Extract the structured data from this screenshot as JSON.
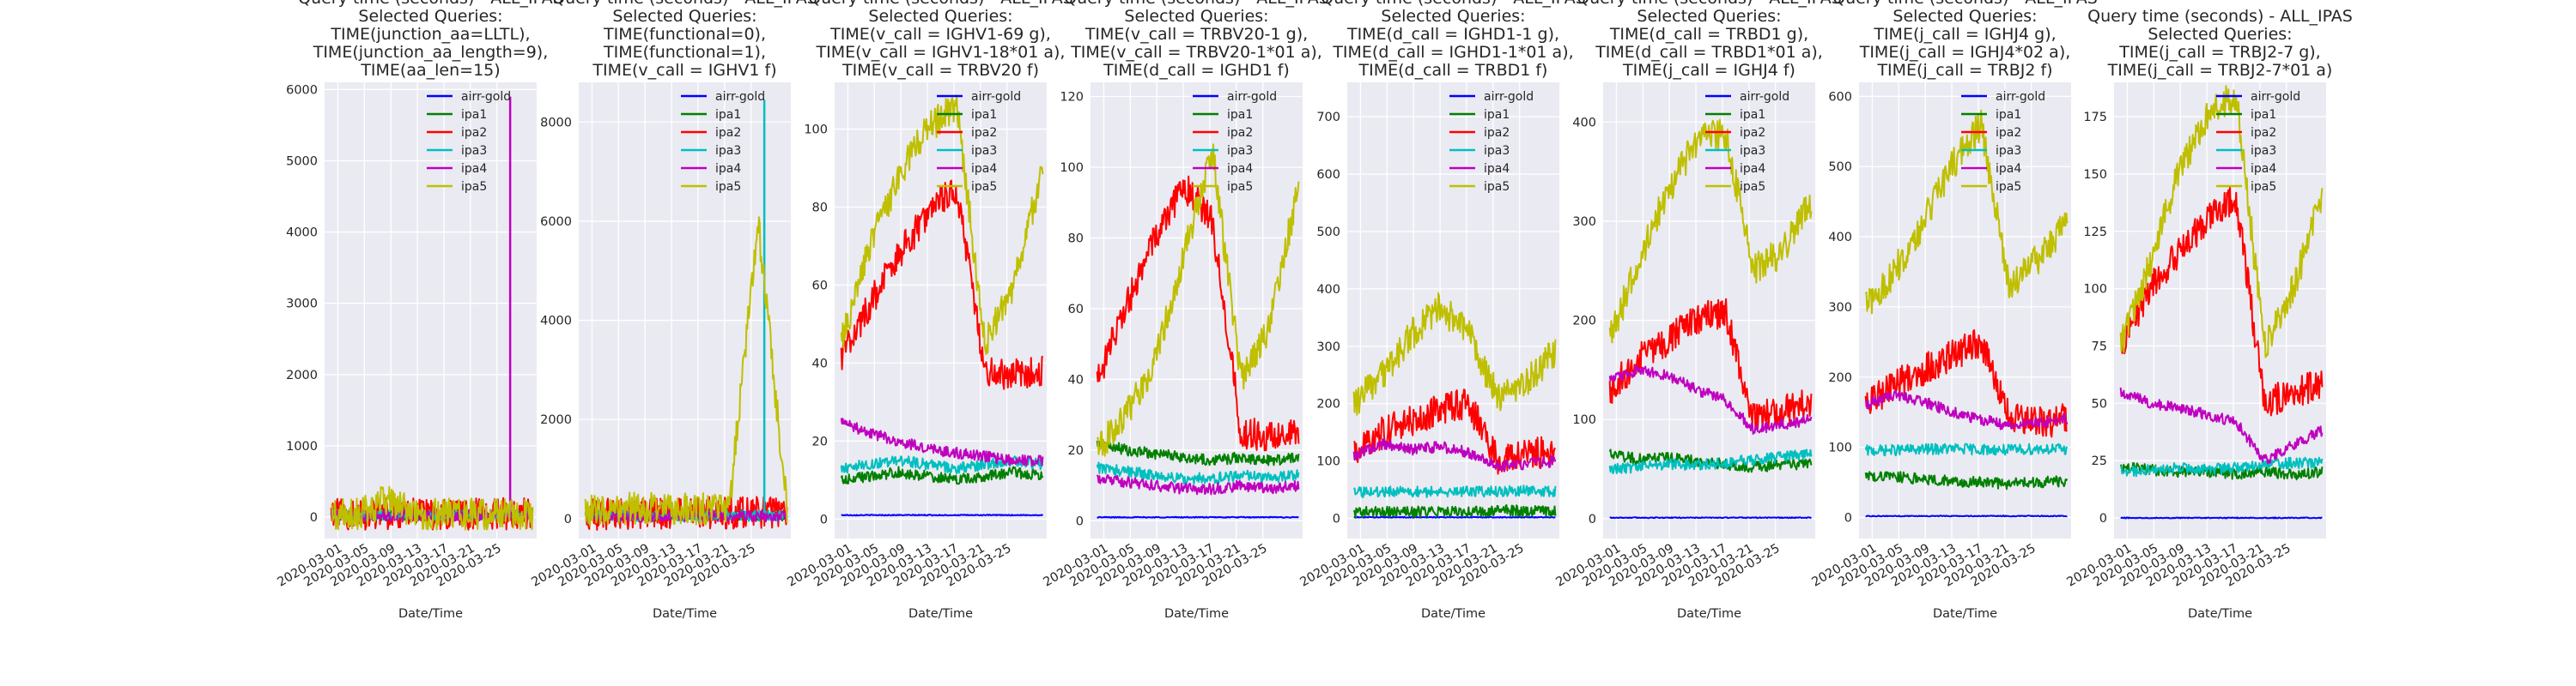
{
  "figure": {
    "xlabel": "Date/Time",
    "background": "#eaeaf2",
    "gridColor": "#ffffff"
  },
  "colors": {
    "airr-gold": "#0000ff",
    "ipa1": "#008000",
    "ipa2": "#ff0000",
    "ipa3": "#00bfbf",
    "ipa4": "#bf00bf",
    "ipa5": "#bfbf00"
  },
  "chart_data": [
    {
      "type": "line",
      "title": [
        "Query time (seconds) - ALL_IPAS",
        "Selected Queries:",
        "TIME(junction_aa=LLTL),",
        "TIME(junction_aa_length=9),",
        "TIME(aa_len=15)"
      ],
      "xlabel": "Date/Time",
      "xticks": [
        "2020-03-01",
        "2020-03-05",
        "2020-03-09",
        "2020-03-13",
        "2020-03-17",
        "2020-03-21",
        "2020-03-25"
      ],
      "xlim": [
        "2020-02-28",
        "2020-03-31"
      ],
      "ylim": [
        -300,
        6100
      ],
      "yticks": [
        0,
        1000,
        2000,
        3000,
        4000,
        5000,
        6000
      ],
      "legend": "top-right",
      "series": [
        {
          "name": "airr-gold",
          "values": [
            5,
            5,
            5,
            5,
            5,
            5,
            5,
            5
          ]
        },
        {
          "name": "ipa1",
          "values": [
            30,
            32,
            35,
            34,
            36,
            35,
            37,
            36
          ]
        },
        {
          "name": "ipa2",
          "values": [
            40,
            42,
            45,
            44,
            46,
            44,
            45,
            45
          ]
        },
        {
          "name": "ipa3",
          "values": [
            25,
            26,
            28,
            27,
            29,
            28,
            30,
            29
          ]
        },
        {
          "name": "ipa4",
          "values": [
            20,
            22,
            24,
            23,
            25,
            24,
            5900,
            30
          ],
          "spike": {
            "x": "2020-03-27",
            "value": 5900
          }
        },
        {
          "name": "ipa5",
          "values": [
            35,
            38,
            260,
            40,
            42,
            41,
            43,
            44
          ]
        }
      ]
    },
    {
      "type": "line",
      "title": [
        "Query time (seconds) - ALL_IPAS",
        "Selected Queries:",
        "TIME(functional=0),",
        "TIME(functional=1),",
        "TIME(v_call = IGHV1 f)"
      ],
      "xlabel": "Date/Time",
      "xticks": [
        "2020-03-01",
        "2020-03-05",
        "2020-03-09",
        "2020-03-13",
        "2020-03-17",
        "2020-03-21",
        "2020-03-25"
      ],
      "xlim": [
        "2020-02-28",
        "2020-03-31"
      ],
      "ylim": [
        -400,
        8800
      ],
      "yticks": [
        0,
        2000,
        4000,
        6000,
        8000
      ],
      "legend": "top-right",
      "series": [
        {
          "name": "airr-gold",
          "values": [
            5,
            5,
            5,
            5,
            5,
            5,
            5,
            5
          ]
        },
        {
          "name": "ipa1",
          "values": [
            60,
            65,
            62,
            70,
            68,
            72,
            75,
            70
          ]
        },
        {
          "name": "ipa2",
          "values": [
            90,
            95,
            100,
            110,
            120,
            115,
            118,
            120
          ]
        },
        {
          "name": "ipa3",
          "values": [
            50,
            55,
            52,
            58,
            60,
            62,
            8450,
            60
          ],
          "spike": {
            "x": "2020-03-27",
            "value": 8450
          }
        },
        {
          "name": "ipa4",
          "values": [
            40,
            45,
            42,
            48,
            50,
            52,
            55,
            50
          ]
        },
        {
          "name": "ipa5",
          "values": [
            180,
            190,
            220,
            210,
            200,
            215,
            6000,
            230
          ]
        }
      ]
    },
    {
      "type": "line",
      "title": [
        "Query time (seconds) - ALL_IPAS",
        "Selected Queries:",
        "TIME(v_call = IGHV1-69 g),",
        "TIME(v_call = IGHV1-18*01 a),",
        "TIME(v_call = TRBV20 f)"
      ],
      "xlabel": "Date/Time",
      "xticks": [
        "2020-03-01",
        "2020-03-05",
        "2020-03-09",
        "2020-03-13",
        "2020-03-17",
        "2020-03-21",
        "2020-03-25"
      ],
      "xlim": [
        "2020-02-28",
        "2020-03-31"
      ],
      "ylim": [
        -5,
        112
      ],
      "yticks": [
        0,
        20,
        40,
        60,
        80,
        100
      ],
      "legend": "top-right",
      "series": [
        {
          "name": "airr-gold",
          "values": [
            1,
            1,
            1,
            1,
            1,
            1,
            1,
            1
          ]
        },
        {
          "name": "ipa1",
          "values": [
            10,
            11,
            12,
            11,
            10,
            11,
            12,
            11
          ]
        },
        {
          "name": "ipa2",
          "values": [
            42,
            55,
            68,
            78,
            85,
            38,
            37,
            38
          ]
        },
        {
          "name": "ipa3",
          "values": [
            13,
            14,
            15,
            14,
            13,
            14,
            15,
            14
          ]
        },
        {
          "name": "ipa4",
          "values": [
            25,
            22,
            20,
            18,
            17,
            16,
            15,
            15
          ]
        },
        {
          "name": "ipa5",
          "values": [
            45,
            70,
            88,
            100,
            106,
            45,
            60,
            90
          ]
        }
      ]
    },
    {
      "type": "line",
      "title": [
        "Query time (seconds) - ALL_IPAS",
        "Selected Queries:",
        "TIME(v_call = TRBV20-1 g),",
        "TIME(v_call = TRBV20-1*01  a),",
        "TIME(d_call = IGHD1 f)"
      ],
      "xlabel": "Date/Time",
      "xticks": [
        "2020-03-01",
        "2020-03-05",
        "2020-03-09",
        "2020-03-13",
        "2020-03-17",
        "2020-03-21",
        "2020-03-25"
      ],
      "xlim": [
        "2020-02-28",
        "2020-03-31"
      ],
      "ylim": [
        -5,
        124
      ],
      "yticks": [
        0,
        20,
        40,
        60,
        80,
        100,
        120
      ],
      "legend": "top-right",
      "series": [
        {
          "name": "airr-gold",
          "values": [
            1,
            1,
            1,
            1,
            1,
            1,
            1,
            1
          ]
        },
        {
          "name": "ipa1",
          "values": [
            22,
            20,
            19,
            18,
            17,
            18,
            17,
            18
          ]
        },
        {
          "name": "ipa2",
          "values": [
            40,
            60,
            80,
            95,
            85,
            25,
            24,
            24
          ]
        },
        {
          "name": "ipa3",
          "values": [
            15,
            14,
            13,
            12,
            12,
            13,
            12,
            13
          ]
        },
        {
          "name": "ipa4",
          "values": [
            12,
            11,
            10,
            9,
            9,
            10,
            9,
            10
          ]
        },
        {
          "name": "ipa5",
          "values": [
            20,
            30,
            45,
            75,
            105,
            40,
            55,
            95
          ]
        }
      ]
    },
    {
      "type": "line",
      "title": [
        "Query time (seconds) - ALL_IPAS",
        "Selected Queries:",
        "TIME(d_call = IGHD1-1 g),",
        "TIME(d_call = IGHD1-1*01 a),",
        "TIME(d_call = TRBD1 f)"
      ],
      "xlabel": "Date/Time",
      "xticks": [
        "2020-03-01",
        "2020-03-05",
        "2020-03-09",
        "2020-03-13",
        "2020-03-17",
        "2020-03-21",
        "2020-03-25"
      ],
      "xlim": [
        "2020-02-28",
        "2020-03-31"
      ],
      "ylim": [
        -35,
        760
      ],
      "yticks": [
        0,
        100,
        200,
        300,
        400,
        500,
        600,
        700
      ],
      "legend": "top-right",
      "series": [
        {
          "name": "airr-gold",
          "values": [
            2,
            2,
            2,
            2,
            2,
            2,
            2,
            2
          ]
        },
        {
          "name": "ipa1",
          "values": [
            10,
            12,
            11,
            13,
            12,
            14,
            13,
            12
          ]
        },
        {
          "name": "ipa2",
          "values": [
            120,
            150,
            170,
            190,
            200,
            100,
            110,
            120
          ]
        },
        {
          "name": "ipa3",
          "values": [
            45,
            46,
            47,
            46,
            48,
            47,
            48,
            47
          ]
        },
        {
          "name": "ipa4",
          "values": [
            110,
            130,
            120,
            125,
            115,
            90,
            95,
            100
          ]
        },
        {
          "name": "ipa5",
          "values": [
            200,
            250,
            320,
            370,
            320,
            210,
            240,
            290
          ]
        }
      ]
    },
    {
      "type": "line",
      "title": [
        "Query time (seconds) - ALL_IPAS",
        "Selected Queries:",
        "TIME(d_call = TRBD1 g),",
        "TIME(d_call = TRBD1*01 a),",
        "TIME(j_call = IGHJ4 f)"
      ],
      "xlabel": "Date/Time",
      "xticks": [
        "2020-03-01",
        "2020-03-05",
        "2020-03-09",
        "2020-03-13",
        "2020-03-17",
        "2020-03-21",
        "2020-03-25"
      ],
      "xlim": [
        "2020-02-28",
        "2020-03-31"
      ],
      "ylim": [
        -20,
        440
      ],
      "yticks": [
        0,
        100,
        200,
        300,
        400
      ],
      "legend": "top-right",
      "series": [
        {
          "name": "airr-gold",
          "values": [
            1,
            1,
            1,
            1,
            1,
            1,
            1,
            1
          ]
        },
        {
          "name": "ipa1",
          "values": [
            65,
            60,
            62,
            58,
            55,
            52,
            54,
            55
          ]
        },
        {
          "name": "ipa2",
          "values": [
            130,
            160,
            180,
            200,
            210,
            100,
            110,
            115
          ]
        },
        {
          "name": "ipa3",
          "values": [
            50,
            52,
            55,
            54,
            56,
            60,
            62,
            65
          ]
        },
        {
          "name": "ipa4",
          "values": [
            140,
            150,
            145,
            130,
            120,
            90,
            95,
            100
          ]
        },
        {
          "name": "ipa5",
          "values": [
            180,
            260,
            330,
            380,
            390,
            250,
            270,
            320
          ]
        }
      ]
    },
    {
      "type": "line",
      "title": [
        "Query time (seconds) - ALL_IPAS",
        "Selected Queries:",
        "TIME(j_call = IGHJ4 g),",
        "TIME(j_call = IGHJ4*02 a),",
        "TIME(j_call = TRBJ2 f)"
      ],
      "xlabel": "Date/Time",
      "xticks": [
        "2020-03-01",
        "2020-03-05",
        "2020-03-09",
        "2020-03-13",
        "2020-03-17",
        "2020-03-21",
        "2020-03-25"
      ],
      "xlim": [
        "2020-02-28",
        "2020-03-31"
      ],
      "ylim": [
        -30,
        620
      ],
      "yticks": [
        0,
        100,
        200,
        300,
        400,
        500,
        600
      ],
      "legend": "top-right",
      "series": [
        {
          "name": "airr-gold",
          "values": [
            2,
            2,
            2,
            2,
            2,
            2,
            2,
            2
          ]
        },
        {
          "name": "ipa1",
          "values": [
            60,
            58,
            55,
            52,
            50,
            48,
            50,
            52
          ]
        },
        {
          "name": "ipa2",
          "values": [
            160,
            190,
            210,
            230,
            250,
            140,
            135,
            140
          ]
        },
        {
          "name": "ipa3",
          "values": [
            95,
            96,
            97,
            98,
            97,
            96,
            98,
            97
          ]
        },
        {
          "name": "ipa4",
          "values": [
            160,
            175,
            165,
            150,
            140,
            130,
            135,
            140
          ]
        },
        {
          "name": "ipa5",
          "values": [
            300,
            350,
            420,
            500,
            560,
            330,
            370,
            420
          ]
        }
      ]
    },
    {
      "type": "line",
      "title": [
        "Query time (seconds) - ALL_IPAS",
        "Selected Queries:",
        "TIME(j_call = TRBJ2-7 g),",
        "TIME(j_call = TRBJ2-7*01 a)"
      ],
      "xlabel": "Date/Time",
      "xticks": [
        "2020-03-01",
        "2020-03-05",
        "2020-03-09",
        "2020-03-13",
        "2020-03-17",
        "2020-03-21",
        "2020-03-25"
      ],
      "xlim": [
        "2020-02-28",
        "2020-03-31"
      ],
      "ylim": [
        -9,
        190
      ],
      "yticks": [
        0,
        25,
        50,
        75,
        100,
        125,
        150,
        175
      ],
      "legend": "top-right",
      "series": [
        {
          "name": "airr-gold",
          "values": [
            0,
            0,
            0,
            0,
            0,
            0,
            0,
            0
          ]
        },
        {
          "name": "ipa1",
          "values": [
            22,
            21,
            20,
            20,
            19,
            20,
            19,
            20
          ]
        },
        {
          "name": "ipa2",
          "values": [
            75,
            100,
            115,
            130,
            140,
            50,
            55,
            58
          ]
        },
        {
          "name": "ipa3",
          "values": [
            20,
            21,
            22,
            21,
            22,
            23,
            24,
            24
          ]
        },
        {
          "name": "ipa4",
          "values": [
            55,
            50,
            48,
            45,
            42,
            25,
            32,
            38
          ]
        },
        {
          "name": "ipa5",
          "values": [
            75,
            110,
            150,
            175,
            185,
            75,
            100,
            140
          ]
        }
      ]
    }
  ]
}
